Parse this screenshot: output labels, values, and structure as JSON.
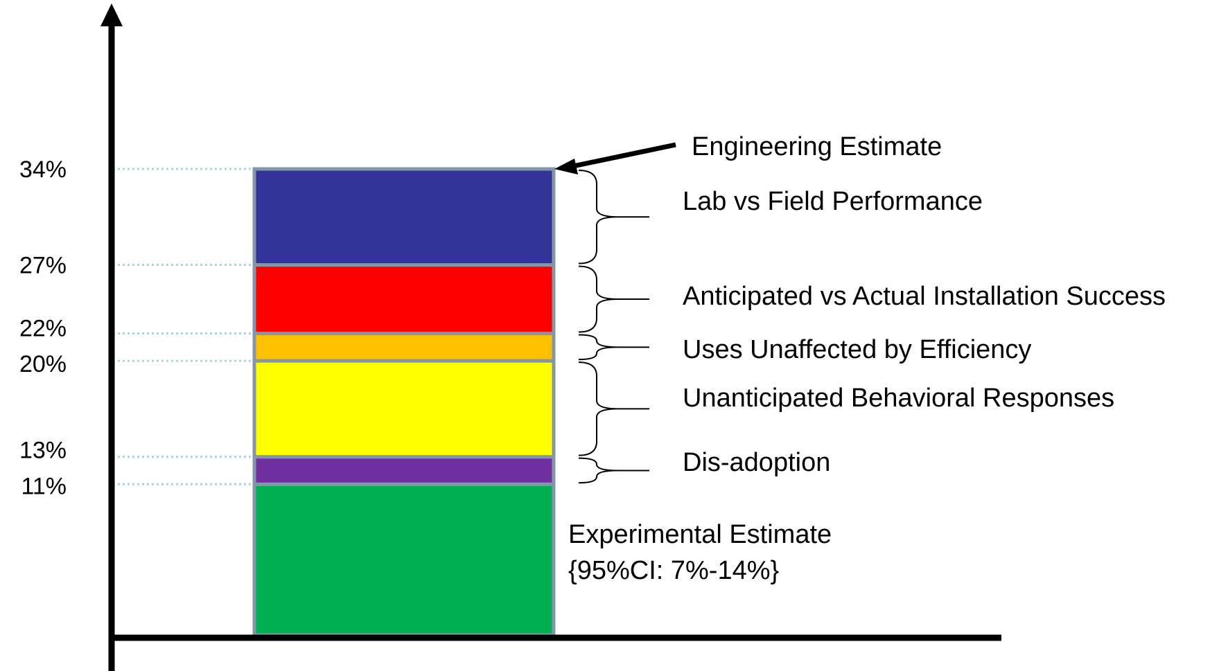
{
  "chart_data": {
    "type": "bar",
    "stacked": true,
    "ylim": [
      0,
      34
    ],
    "categories": [
      ""
    ],
    "segments": [
      {
        "label": "Experimental Estimate",
        "from": 0,
        "to": 11,
        "color": "#00B050"
      },
      {
        "label": "Dis-adoption",
        "from": 11,
        "to": 13,
        "color": "#7030A0"
      },
      {
        "label": "Unanticipated Behavioral Responses",
        "from": 13,
        "to": 20,
        "color": "#FFFF00"
      },
      {
        "label": "Uses Unaffected by Efficiency",
        "from": 20,
        "to": 22,
        "color": "#FFC000"
      },
      {
        "label": "Anticipated vs Actual Installation Success",
        "from": 22,
        "to": 27,
        "color": "#FF0000"
      },
      {
        "label": "Lab vs Field Performance",
        "from": 27,
        "to": 34,
        "color": "#333399"
      }
    ],
    "y_ticks": [
      {
        "value": 34,
        "label": "34%"
      },
      {
        "value": 27,
        "label": "27%"
      },
      {
        "value": 22,
        "label": "22%"
      },
      {
        "value": 20,
        "label": "20%"
      },
      {
        "value": 13,
        "label": "13%"
      },
      {
        "value": 11,
        "label": "11%"
      }
    ],
    "annotations": {
      "engineering_estimate": "Engineering Estimate",
      "experimental_estimate": "Experimental Estimate",
      "experimental_ci": "{95%CI: 7%-14%}"
    },
    "grid": "dotted guide lines at tick values",
    "outline_color": "#8497A8",
    "guide_color": "#A8D4DC"
  }
}
